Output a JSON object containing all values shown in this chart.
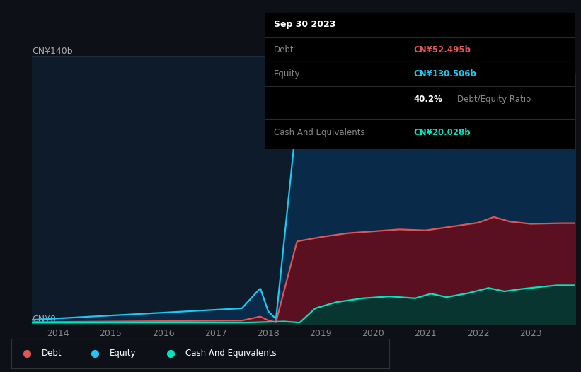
{
  "bg_color": "#0d1117",
  "plot_bg_color": "#0d1b2a",
  "ylabel_top": "CN¥140b",
  "ylabel_bottom": "CN¥0",
  "debt_color": "#e05555",
  "equity_color": "#1ec8f0",
  "cash_color": "#00e5c0",
  "debt_fill_color": "#5a1020",
  "equity_fill_color": "#0a2a4a",
  "cash_fill_color": "#083530",
  "tooltip": {
    "date": "Sep 30 2023",
    "debt_label": "Debt",
    "debt_value": "CN¥52.495b",
    "equity_label": "Equity",
    "equity_value": "CN¥130.506b",
    "ratio_value": "40.2%",
    "ratio_label": "Debt/Equity Ratio",
    "cash_label": "Cash And Equivalents",
    "cash_value": "CN¥20.028b",
    "debt_color": "#e05555",
    "equity_color": "#1ec8f0",
    "cash_color": "#00e5c0"
  },
  "ylim": [
    0,
    140
  ],
  "xlim": [
    2013.5,
    2023.85
  ]
}
